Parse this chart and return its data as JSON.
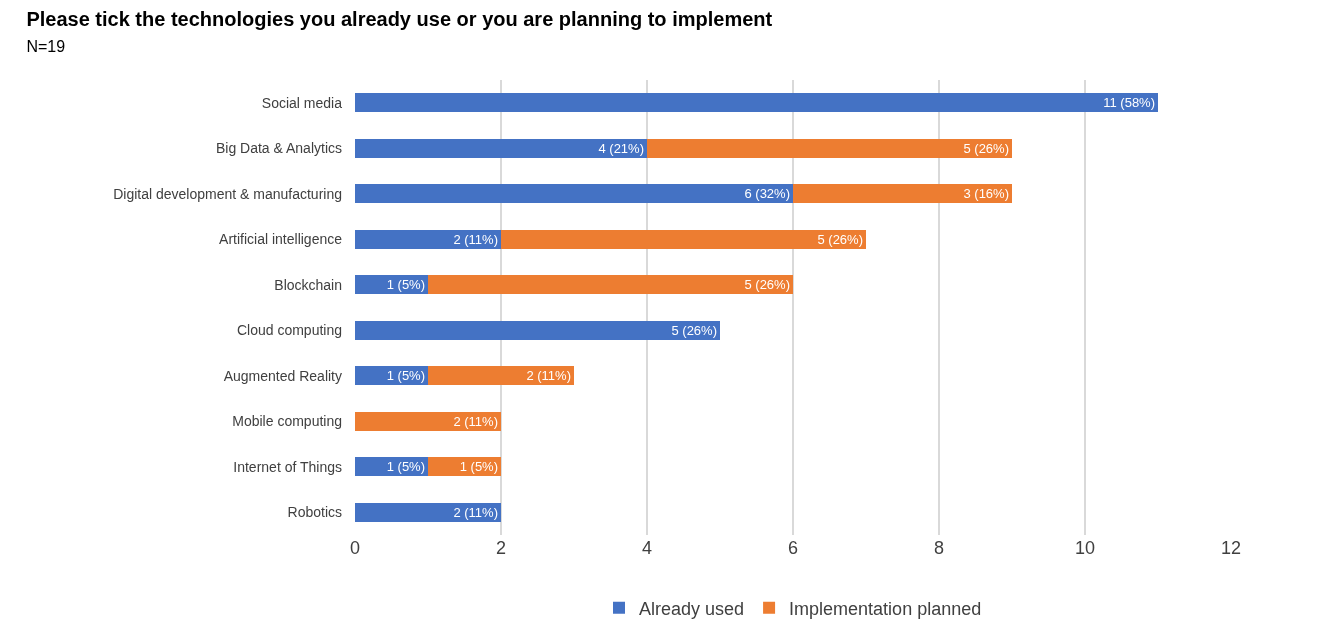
{
  "chart_data": {
    "type": "bar",
    "orientation": "horizontal",
    "stacked": true,
    "title": "Please tick the technologies you already use or you are planning to implement",
    "subtitle": "N=19",
    "categories": [
      "Social media",
      "Big Data & Analytics",
      "Digital development & manufacturing",
      "Artificial intelligence",
      "Blockchain",
      "Cloud computing",
      "Augmented Reality",
      "Mobile computing",
      "Internet of Things",
      "Robotics"
    ],
    "series": [
      {
        "name": "Already used",
        "color": "#4472c4",
        "values": [
          11,
          4,
          6,
          2,
          1,
          5,
          1,
          null,
          1,
          2
        ],
        "value_labels": [
          "11 (58%)",
          "4 (21%)",
          "6 (32%)",
          "2 (11%)",
          "1 (5%)",
          "5 (26%)",
          "1 (5%)",
          null,
          "1 (5%)",
          "2 (11%)"
        ]
      },
      {
        "name": "Implementation planned",
        "color": "#ed7d31",
        "values": [
          null,
          5,
          3,
          5,
          5,
          null,
          2,
          2,
          1,
          null
        ],
        "value_labels": [
          null,
          "5 (26%)",
          "3 (16%)",
          "5 (26%)",
          "5 (26%)",
          null,
          "2 (11%)",
          "2 (11%)",
          "1 (5%)",
          null
        ]
      }
    ],
    "xlim": [
      0,
      12
    ],
    "xticks": [
      0,
      2,
      4,
      6,
      8,
      10,
      12
    ],
    "grid": "x",
    "legend": "bottom"
  }
}
